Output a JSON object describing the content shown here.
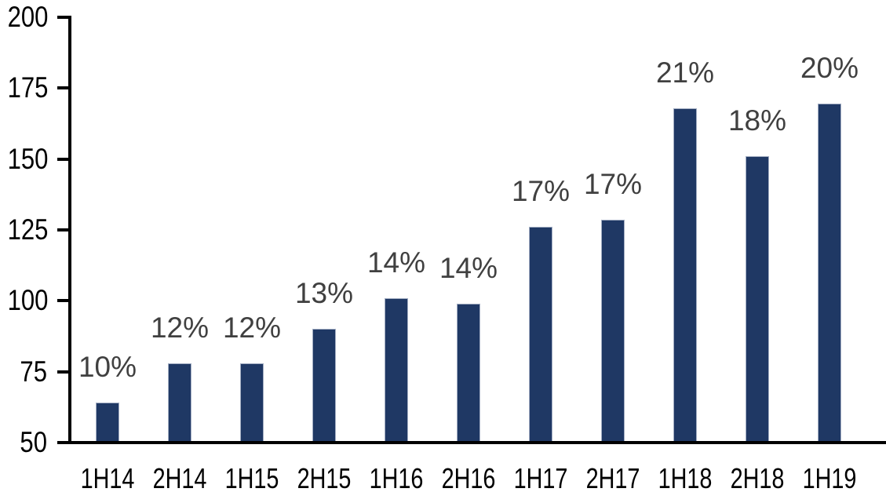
{
  "chart_data": {
    "type": "bar",
    "title": "",
    "xlabel": "",
    "ylabel": "",
    "categories": [
      "1H14",
      "2H14",
      "1H15",
      "2H15",
      "1H16",
      "2H16",
      "1H17",
      "2H17",
      "1H18",
      "2H18",
      "1H19"
    ],
    "values": [
      64,
      78,
      78,
      90,
      101,
      99,
      126,
      128.5,
      168,
      151,
      169.5
    ],
    "bar_labels": [
      "10%",
      "12%",
      "12%",
      "13%",
      "14%",
      "14%",
      "17%",
      "17%",
      "21%",
      "18%",
      "20%"
    ],
    "ylim": [
      50,
      200
    ],
    "ytick_interval": 25,
    "yticks": [
      50,
      75,
      100,
      125,
      150,
      175,
      200
    ],
    "grid": false,
    "legend": false,
    "colors": {
      "bar_fill": "#1f3864",
      "bar_border": "#a3aec3",
      "data_label": "#404040",
      "axis_line": "#000000",
      "tick_label": "#000000",
      "background": "#ffffff"
    }
  }
}
